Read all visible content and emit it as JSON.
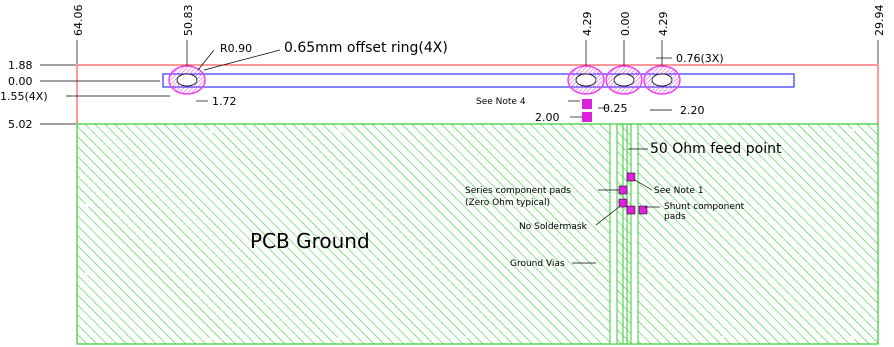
{
  "top_dims": {
    "left_edge": "64.06",
    "hole1": "50.83",
    "hole2": "4.29",
    "center": "0.00",
    "hole3": "4.29",
    "right_edge": "29.94"
  },
  "left_dims": {
    "y1": "1.88",
    "y2": "0.00",
    "y3": "1.55(4X)",
    "y4": "5.02"
  },
  "callouts": {
    "radius": "R0.90",
    "offset_ring": "0.65mm offset ring(4X)",
    "ring_gap": "0.76(3X)",
    "slot_width": "1.72",
    "see_note4": "See Note 4",
    "pad_gap": "0.25",
    "pad_dim": "2.00",
    "feed_gap": "2.20",
    "feed_point": "50 Ohm feed point",
    "series_line1": "Series component pads",
    "series_line2": "(Zero Ohm typical)",
    "see_note1": "See Note 1",
    "shunt_line1": "Shunt component",
    "shunt_line2": "pads",
    "no_soldermask": "No Soldermask",
    "ground_vias": "Ground Vias",
    "pcb_ground": "PCB Ground"
  },
  "colors": {
    "ground": "#33cc33",
    "antenna": "#3333ff",
    "outline": "#ff3333",
    "ring": "#ee44ee",
    "pad": "#dd22dd"
  }
}
